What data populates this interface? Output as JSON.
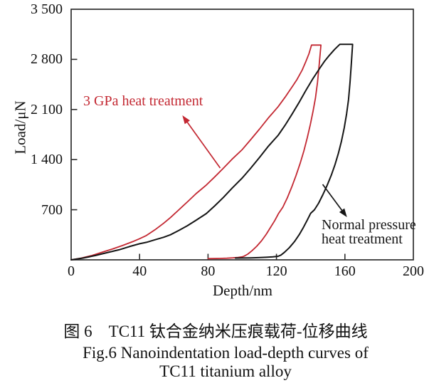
{
  "figure": {
    "caption_zh": "图 6　TC11 钛合金纳米压痕载荷-位移曲线",
    "caption_en_line1": "Fig.6 Nanoindentation load-depth curves of",
    "caption_en_line2": "TC11 titanium alloy"
  },
  "chart_data": {
    "type": "line",
    "title": "",
    "xlabel": "Depth/nm",
    "ylabel": "Load/μN",
    "xlim": [
      0,
      200
    ],
    "ylim": [
      0,
      3500
    ],
    "grid": false,
    "legend": "none (direct curve annotations)",
    "frame_color": "#2e2e2e",
    "x_ticks": {
      "values": [
        0,
        40,
        80,
        120,
        160,
        200
      ],
      "labels": [
        "0",
        "40",
        "80",
        "120",
        "160",
        "200"
      ]
    },
    "y_ticks": {
      "values": [
        700,
        1400,
        2100,
        2800,
        3500
      ],
      "labels": [
        "700",
        "1 400",
        "2 100",
        "2 800",
        "3 500"
      ]
    },
    "series": [
      {
        "name": "3 GPa heat treatment",
        "color": "#c32832",
        "width": 1.8,
        "peak_load": 3000,
        "peak_depth": 143,
        "final_depth": 100,
        "points": [
          [
            0,
            0
          ],
          [
            6,
            25
          ],
          [
            12,
            60
          ],
          [
            18,
            105
          ],
          [
            24,
            150
          ],
          [
            30,
            200
          ],
          [
            36,
            255
          ],
          [
            40,
            295
          ],
          [
            44,
            340
          ],
          [
            49,
            420
          ],
          [
            54,
            510
          ],
          [
            58,
            590
          ],
          [
            63,
            700
          ],
          [
            68,
            810
          ],
          [
            73,
            925
          ],
          [
            79,
            1045
          ],
          [
            84,
            1160
          ],
          [
            89,
            1280
          ],
          [
            94,
            1405
          ],
          [
            100,
            1540
          ],
          [
            105,
            1680
          ],
          [
            110,
            1825
          ],
          [
            115,
            1975
          ],
          [
            121,
            2140
          ],
          [
            125,
            2270
          ],
          [
            129,
            2410
          ],
          [
            132,
            2520
          ],
          [
            135,
            2650
          ],
          [
            137,
            2760
          ],
          [
            139,
            2880
          ],
          [
            140.5,
            3000
          ],
          [
            146,
            3000
          ],
          [
            145,
            2730
          ],
          [
            144,
            2480
          ],
          [
            142.8,
            2260
          ],
          [
            141.4,
            2080
          ],
          [
            139.8,
            1890
          ],
          [
            138,
            1705
          ],
          [
            136,
            1520
          ],
          [
            133.8,
            1345
          ],
          [
            131.4,
            1175
          ],
          [
            128.9,
            1015
          ],
          [
            126.3,
            865
          ],
          [
            123.7,
            735
          ],
          [
            121.3,
            650
          ],
          [
            118.9,
            545
          ],
          [
            116.5,
            452
          ],
          [
            114,
            357
          ],
          [
            111.3,
            267
          ],
          [
            108.5,
            190
          ],
          [
            105.7,
            127
          ],
          [
            103.2,
            80
          ],
          [
            101.2,
            53
          ],
          [
            100,
            42
          ],
          [
            97.5,
            34
          ],
          [
            94.5,
            28
          ],
          [
            91,
            23
          ],
          [
            87,
            20
          ],
          [
            83,
            18
          ],
          [
            80,
            17
          ]
        ]
      },
      {
        "name": "Normal pressure heat treatment",
        "color": "#151515",
        "width": 2.0,
        "peak_load": 3010,
        "peak_depth": 164,
        "final_depth": 121,
        "points": [
          [
            0,
            0
          ],
          [
            7,
            25
          ],
          [
            14,
            60
          ],
          [
            21,
            100
          ],
          [
            28,
            140
          ],
          [
            34,
            185
          ],
          [
            40,
            225
          ],
          [
            44,
            245
          ],
          [
            49,
            280
          ],
          [
            54,
            315
          ],
          [
            58,
            350
          ],
          [
            63,
            412
          ],
          [
            68,
            477
          ],
          [
            73,
            553
          ],
          [
            79,
            646
          ],
          [
            84,
            756
          ],
          [
            89,
            872
          ],
          [
            94,
            1000
          ],
          [
            100,
            1143
          ],
          [
            105,
            1282
          ],
          [
            110,
            1428
          ],
          [
            115,
            1580
          ],
          [
            121,
            1740
          ],
          [
            125,
            1878
          ],
          [
            129,
            2030
          ],
          [
            133,
            2190
          ],
          [
            137,
            2360
          ],
          [
            141,
            2520
          ],
          [
            145,
            2665
          ],
          [
            148,
            2770
          ],
          [
            151,
            2860
          ],
          [
            154,
            2940
          ],
          [
            157,
            3010
          ],
          [
            164.5,
            3010
          ],
          [
            163.8,
            2750
          ],
          [
            163,
            2480
          ],
          [
            162.1,
            2240
          ],
          [
            161,
            2040
          ],
          [
            159.6,
            1840
          ],
          [
            158,
            1660
          ],
          [
            156.2,
            1490
          ],
          [
            154.2,
            1330
          ],
          [
            152,
            1180
          ],
          [
            149.6,
            1040
          ],
          [
            147.1,
            910
          ],
          [
            144.6,
            790
          ],
          [
            142.2,
            700
          ],
          [
            140,
            650
          ],
          [
            137.9,
            550
          ],
          [
            135.8,
            455
          ],
          [
            133.3,
            352
          ],
          [
            130.5,
            255
          ],
          [
            127.6,
            172
          ],
          [
            124.8,
            107
          ],
          [
            122.6,
            67
          ],
          [
            121,
            50
          ],
          [
            118,
            42
          ],
          [
            114,
            36
          ],
          [
            109.5,
            31
          ],
          [
            105,
            28
          ],
          [
            100,
            26
          ],
          [
            96,
            25
          ]
        ]
      }
    ],
    "annotations": [
      {
        "text": "3 GPa heat treatment",
        "color": "#c32832",
        "arrow": {
          "from": [
            87.1,
            1283
          ],
          "to": [
            65,
            2018
          ]
        }
      },
      {
        "text": "Normal pressure heat treatment",
        "lines": [
          "Normal pressure",
          "heat treatment"
        ],
        "color": "#151515",
        "arrow": {
          "from": [
            147,
            1054
          ],
          "to": [
            161.2,
            597
          ]
        }
      }
    ]
  }
}
